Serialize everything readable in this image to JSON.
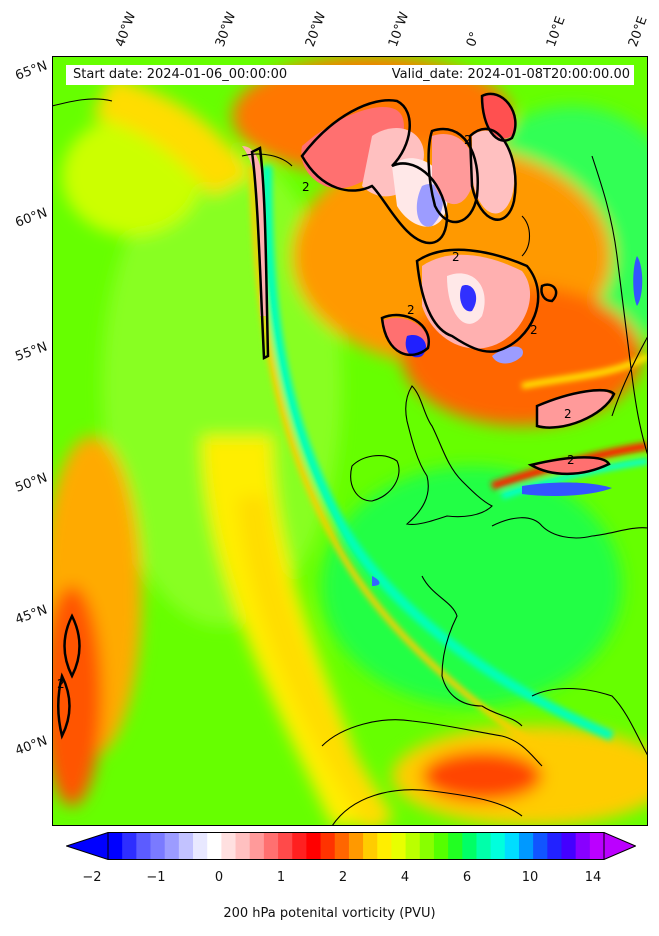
{
  "header": {
    "start_date": "Start date: 2024-01-06_00:00:00",
    "valid_date": "Valid_date: 2024-01-08T20:00:00.00"
  },
  "map": {
    "field": "200 hPa potential vorticity",
    "contour_label": "2",
    "lon_labels": [
      "40°W",
      "30°W",
      "20°W",
      "10°W",
      "0°",
      "10°E",
      "20°E"
    ],
    "lat_labels": [
      "65°N",
      "60°N",
      "55°N",
      "50°N",
      "45°N",
      "40°N"
    ]
  },
  "colorbar": {
    "label": "200 hPa potenital vorticity (PVU)",
    "ticks": [
      "−2",
      "−1",
      "0",
      "1",
      "2",
      "4",
      "6",
      "10",
      "14"
    ],
    "colors": [
      "#0000ff",
      "#2e2eff",
      "#5c5cff",
      "#7a7aff",
      "#9c9cff",
      "#c2c2ff",
      "#e8e8ff",
      "#ffffff",
      "#ffe0e0",
      "#ffc0c0",
      "#ff9a9a",
      "#ff7070",
      "#ff4a4a",
      "#ff2020",
      "#ff0000",
      "#ff3300",
      "#ff6600",
      "#ff9900",
      "#ffcc00",
      "#ffee00",
      "#e8ff00",
      "#bbff00",
      "#88ff00",
      "#55ff00",
      "#22ff22",
      "#00ff66",
      "#00ffaa",
      "#00ffdd",
      "#00ddff",
      "#0099ff",
      "#1155ff",
      "#2222ff",
      "#4400ff",
      "#8800ff",
      "#bb00ff"
    ]
  }
}
